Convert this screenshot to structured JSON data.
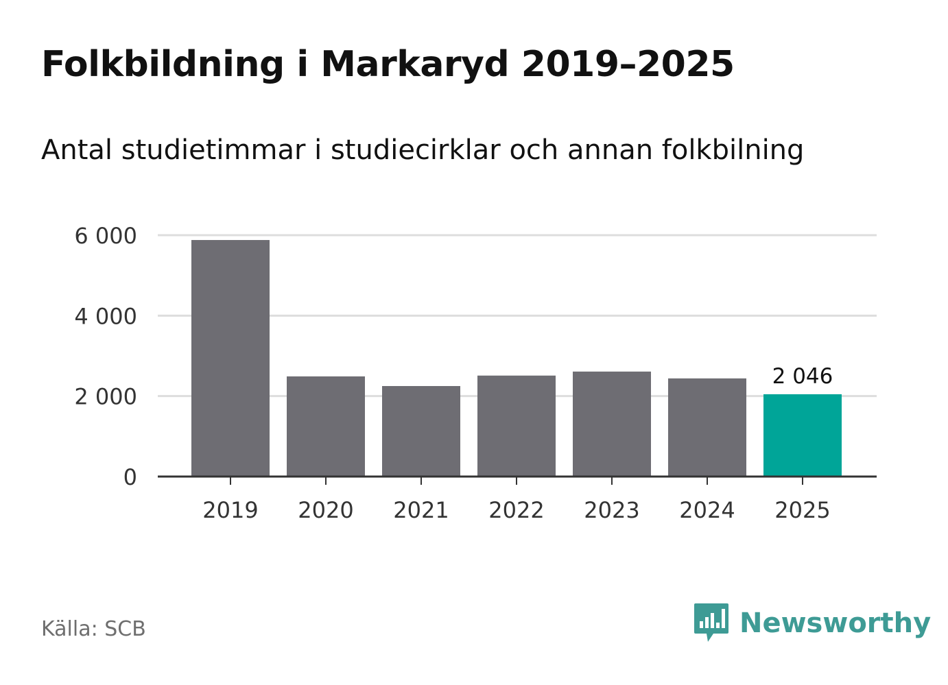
{
  "title": "Folkbildning i Markaryd 2019–2025",
  "subtitle": "Antal studietimmar i studiecirklar och annan folkbilning",
  "source": "Källa: SCB",
  "brand": "Newsworthy",
  "colors": {
    "bar": "#6e6d73",
    "highlight": "#00a598",
    "grid": "#dddddd",
    "axis": "#333333",
    "brand": "#3e9b95"
  },
  "chart_data": {
    "type": "bar",
    "categories": [
      "2019",
      "2020",
      "2021",
      "2022",
      "2023",
      "2024",
      "2025"
    ],
    "values": [
      5880,
      2490,
      2250,
      2510,
      2610,
      2440,
      2046
    ],
    "highlight_index": 6,
    "data_labels": [
      {
        "index": 6,
        "text": "2 046"
      }
    ],
    "ylim": [
      0,
      6000
    ],
    "yticks": [
      0,
      2000,
      4000,
      6000
    ],
    "ytick_labels": [
      "0",
      "2 000",
      "4 000",
      "6 000"
    ],
    "grid": true,
    "xlabel": "",
    "ylabel": ""
  }
}
